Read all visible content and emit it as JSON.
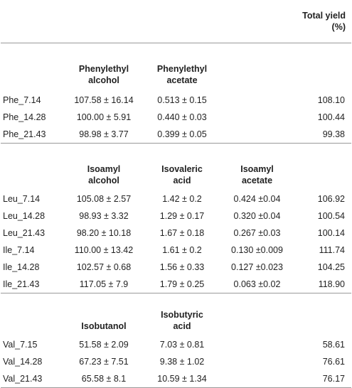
{
  "total_yield_header": "Total yield\n(%)",
  "total_yield_line1": "Total yield",
  "total_yield_line2": "(%)",
  "groups": [
    {
      "headers": [
        [
          "Phenylethyl",
          "alcohol"
        ],
        [
          "Phenylethyl",
          "acetate"
        ],
        [
          "",
          ""
        ]
      ],
      "rows": [
        {
          "name": "Phe_7.14",
          "v": [
            "107.58 ± 16.14",
            "0.513 ± 0.15",
            ""
          ],
          "total": "108.10"
        },
        {
          "name": "Phe_14.28",
          "v": [
            "100.00 ± 5.91",
            "0.440 ± 0.03",
            ""
          ],
          "total": "100.44"
        },
        {
          "name": "Phe_21.43",
          "v": [
            "98.98 ± 3.77",
            "0.399 ± 0.05",
            ""
          ],
          "total": "99.38"
        }
      ]
    },
    {
      "headers": [
        [
          "Isoamyl",
          "alcohol"
        ],
        [
          "Isovaleric",
          "acid"
        ],
        [
          "Isoamyl",
          "acetate"
        ]
      ],
      "rows": [
        {
          "name": "Leu_7.14",
          "v": [
            "105.08 ± 2.57",
            "1.42 ± 0.2",
            "0.424 ±0.04"
          ],
          "total": "106.92"
        },
        {
          "name": "Leu_14.28",
          "v": [
            "98.93 ± 3.32",
            "1.29 ± 0.17",
            "0.320 ±0.04"
          ],
          "total": "100.54"
        },
        {
          "name": "Leu_21.43",
          "v": [
            "98.20 ± 10.18",
            "1.67 ± 0.18",
            "0.267 ±0.03"
          ],
          "total": "100.14"
        },
        {
          "name": "Ile_7.14",
          "v": [
            "110.00 ± 13.42",
            "1.61 ± 0.2",
            "0.130 ±0.009"
          ],
          "total": "111.74"
        },
        {
          "name": "Ile_14.28",
          "v": [
            "102.57 ± 0.68",
            "1.56 ± 0.33",
            "0.127 ±0.023"
          ],
          "total": "104.25"
        },
        {
          "name": "Ile_21.43",
          "v": [
            "117.05 ± 7.9",
            "1.79 ± 0.25",
            "0.063 ±0.02"
          ],
          "total": "118.90"
        }
      ]
    },
    {
      "headers": [
        [
          "Isobutanol",
          ""
        ],
        [
          "Isobutyric",
          "acid"
        ],
        [
          "",
          ""
        ]
      ],
      "rows": [
        {
          "name": "Val_7.15",
          "v": [
            "51.58 ± 2.09",
            "7.03 ± 0.81",
            ""
          ],
          "total": "58.61"
        },
        {
          "name": "Val_14.28",
          "v": [
            "67.23 ± 7.51",
            "9.38 ± 1.02",
            ""
          ],
          "total": "76.61"
        },
        {
          "name": "Val_21.43",
          "v": [
            "65.58 ± 8.1",
            "10.59 ± 1.34",
            ""
          ],
          "total": "76.17"
        }
      ]
    }
  ]
}
